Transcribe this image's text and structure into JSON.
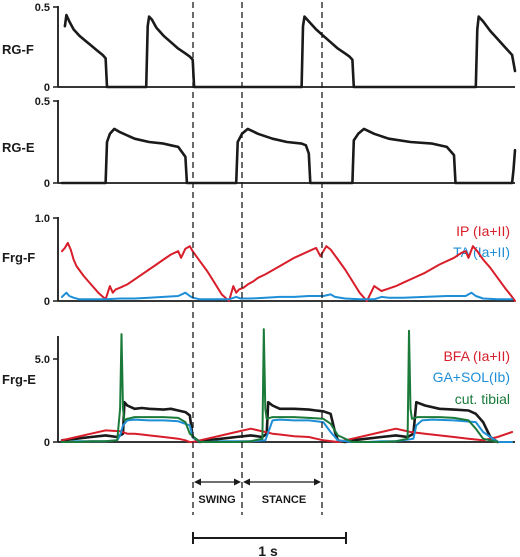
{
  "colors": {
    "black": "#1a1a1a",
    "red": "#d81e2a",
    "blue": "#1e8fd6",
    "green": "#1a7a3a"
  },
  "chart_data": [
    {
      "type": "line",
      "panel": "RG-F",
      "ylabel": "RG-F",
      "ylim": [
        0,
        0.5
      ],
      "yticks": [
        "0.5",
        "0"
      ],
      "series": [
        {
          "color": "black",
          "x": [
            0.02,
            0.03,
            0.05,
            0.08,
            0.12,
            0.16,
            0.2,
            0.24,
            0.28,
            0.3,
            0.31,
            0.5,
            0.58,
            0.59,
            0.6,
            0.62,
            0.65,
            0.7,
            0.75,
            0.8,
            0.85,
            0.88,
            0.9,
            0.91,
            1.5,
            1.65,
            1.66,
            1.67,
            1.7,
            1.75,
            1.8,
            1.85,
            1.9,
            1.95,
            1.98,
            2.0,
            2.01,
            2.6,
            2.85,
            2.86,
            2.87,
            2.9,
            2.95,
            3.0,
            3.05,
            3.1,
            3.12
          ],
          "y": [
            0.38,
            0.45,
            0.41,
            0.36,
            0.32,
            0.29,
            0.26,
            0.23,
            0.2,
            0.18,
            0.0,
            0.0,
            0.0,
            0.38,
            0.44,
            0.42,
            0.37,
            0.32,
            0.28,
            0.24,
            0.21,
            0.19,
            0.17,
            0.0,
            0.0,
            0.0,
            0.38,
            0.44,
            0.41,
            0.36,
            0.32,
            0.28,
            0.24,
            0.21,
            0.19,
            0.17,
            0.0,
            0.0,
            0.0,
            0.36,
            0.44,
            0.41,
            0.35,
            0.3,
            0.25,
            0.2,
            0.1
          ]
        }
      ]
    },
    {
      "type": "line",
      "panel": "RG-E",
      "ylabel": "RG-E",
      "ylim": [
        0,
        0.5
      ],
      "yticks": [
        "0.5",
        "0"
      ],
      "series": [
        {
          "color": "black",
          "x": [
            0.0,
            0.3,
            0.31,
            0.33,
            0.36,
            0.4,
            0.5,
            0.6,
            0.7,
            0.75,
            0.8,
            0.85,
            0.86,
            1.2,
            1.21,
            1.24,
            1.28,
            1.35,
            1.45,
            1.55,
            1.65,
            1.68,
            1.7,
            1.71,
            2.0,
            2.01,
            2.04,
            2.08,
            2.15,
            2.25,
            2.4,
            2.55,
            2.65,
            2.7,
            2.71,
            3.1,
            3.11,
            3.12
          ],
          "y": [
            0.0,
            0.0,
            0.25,
            0.3,
            0.33,
            0.31,
            0.27,
            0.25,
            0.24,
            0.23,
            0.22,
            0.16,
            0.0,
            0.0,
            0.25,
            0.3,
            0.33,
            0.3,
            0.27,
            0.25,
            0.24,
            0.23,
            0.18,
            0.0,
            0.0,
            0.26,
            0.3,
            0.33,
            0.3,
            0.27,
            0.25,
            0.24,
            0.22,
            0.17,
            0.0,
            0.0,
            0.08,
            0.2
          ]
        }
      ]
    },
    {
      "type": "line",
      "panel": "Frg-F",
      "ylabel": "Frg-F",
      "ylim": [
        0,
        1.0
      ],
      "yticks": [
        "1.0",
        "0"
      ],
      "series": [
        {
          "name": "IP (Ia+II)",
          "color": "red",
          "x": [
            0.0,
            0.02,
            0.04,
            0.06,
            0.08,
            0.1,
            0.15,
            0.2,
            0.25,
            0.3,
            0.33,
            0.35,
            0.37,
            0.4,
            0.45,
            0.5,
            0.55,
            0.6,
            0.65,
            0.7,
            0.75,
            0.8,
            0.82,
            0.85,
            0.88,
            0.9,
            0.95,
            1.0,
            1.05,
            1.1,
            1.15,
            1.18,
            1.2,
            1.22,
            1.25,
            1.28,
            1.32,
            1.35,
            1.4,
            1.5,
            1.6,
            1.7,
            1.75,
            1.78,
            1.82,
            1.85,
            1.9,
            1.95,
            2.0,
            2.05,
            2.1,
            2.15,
            2.2,
            2.25,
            2.3,
            2.35,
            2.4,
            2.5,
            2.6,
            2.7,
            2.75,
            2.78,
            2.8,
            2.83,
            2.86,
            2.9,
            2.95,
            3.0,
            3.05,
            3.1,
            3.12
          ],
          "y": [
            0.6,
            0.64,
            0.7,
            0.62,
            0.5,
            0.42,
            0.3,
            0.2,
            0.1,
            0.02,
            0.18,
            0.1,
            0.14,
            0.16,
            0.2,
            0.26,
            0.32,
            0.38,
            0.44,
            0.5,
            0.56,
            0.6,
            0.52,
            0.63,
            0.66,
            0.6,
            0.48,
            0.36,
            0.22,
            0.08,
            0.0,
            0.18,
            0.1,
            0.14,
            0.16,
            0.2,
            0.24,
            0.28,
            0.32,
            0.42,
            0.52,
            0.6,
            0.64,
            0.54,
            0.66,
            0.62,
            0.5,
            0.38,
            0.24,
            0.1,
            0.0,
            0.18,
            0.12,
            0.15,
            0.18,
            0.22,
            0.26,
            0.34,
            0.44,
            0.52,
            0.58,
            0.6,
            0.52,
            0.66,
            0.6,
            0.5,
            0.4,
            0.28,
            0.16,
            0.05,
            0.0
          ]
        },
        {
          "name": "TA (Ia+II)",
          "color": "blue",
          "x": [
            0.0,
            0.03,
            0.05,
            0.08,
            0.12,
            0.2,
            0.3,
            0.4,
            0.5,
            0.6,
            0.7,
            0.8,
            0.85,
            0.88,
            0.9,
            0.95,
            1.05,
            1.15,
            1.2,
            1.23,
            1.3,
            1.4,
            1.5,
            1.6,
            1.7,
            1.8,
            1.85,
            1.88,
            1.95,
            2.05,
            2.15,
            2.2,
            2.25,
            2.35,
            2.5,
            2.65,
            2.78,
            2.82,
            2.85,
            2.9,
            3.0,
            3.1
          ],
          "y": [
            0.05,
            0.1,
            0.06,
            0.04,
            0.02,
            0.02,
            0.02,
            0.03,
            0.03,
            0.04,
            0.05,
            0.06,
            0.1,
            0.06,
            0.04,
            0.02,
            0.02,
            0.02,
            0.05,
            0.03,
            0.03,
            0.04,
            0.05,
            0.05,
            0.06,
            0.06,
            0.08,
            0.05,
            0.03,
            0.02,
            0.02,
            0.05,
            0.04,
            0.04,
            0.05,
            0.06,
            0.06,
            0.1,
            0.06,
            0.03,
            0.02,
            0.02
          ]
        }
      ],
      "legend_placement": "top-right"
    },
    {
      "type": "line",
      "panel": "Frg-E",
      "ylabel": "Frg-E",
      "ylim": [
        0,
        5.0
      ],
      "yticks": [
        "5.0",
        "0"
      ],
      "series": [
        {
          "name": "BFA (Ia+II)",
          "color": "red",
          "x": [
            0.0,
            0.1,
            0.2,
            0.3,
            0.4,
            0.45,
            0.5,
            0.55,
            0.6,
            0.7,
            0.8,
            0.85,
            0.88,
            0.9,
            1.0,
            1.1,
            1.2,
            1.3,
            1.4,
            1.45,
            1.5,
            1.6,
            1.7,
            1.75,
            1.8,
            1.9,
            2.0,
            2.1,
            2.2,
            2.3,
            2.4,
            2.5,
            2.6,
            2.7,
            2.8,
            2.9,
            3.0,
            3.1
          ],
          "y": [
            0.1,
            0.3,
            0.5,
            0.7,
            0.65,
            0.5,
            0.5,
            0.45,
            0.4,
            0.3,
            0.2,
            0.1,
            0.0,
            0.0,
            0.2,
            0.4,
            0.6,
            0.8,
            0.6,
            0.5,
            0.45,
            0.35,
            0.3,
            0.2,
            0.1,
            0.0,
            0.2,
            0.4,
            0.6,
            0.8,
            0.6,
            0.5,
            0.4,
            0.3,
            0.2,
            0.1,
            0.3,
            0.6
          ]
        },
        {
          "name": "GA+SOL(Ib)",
          "color": "blue",
          "x": [
            0.0,
            0.05,
            0.1,
            0.2,
            0.3,
            0.38,
            0.4,
            0.42,
            0.45,
            0.5,
            0.6,
            0.7,
            0.8,
            0.88,
            0.9,
            0.95,
            1.0,
            1.1,
            1.2,
            1.3,
            1.4,
            1.43,
            1.45,
            1.5,
            1.6,
            1.7,
            1.8,
            1.85,
            1.9,
            2.0,
            2.1,
            2.2,
            2.3,
            2.42,
            2.44,
            2.48,
            2.55,
            2.7,
            2.85,
            2.9,
            3.0,
            3.1
          ],
          "y": [
            0.0,
            0.0,
            0.05,
            0.05,
            0.05,
            0.1,
            0.4,
            1.0,
            1.3,
            1.35,
            1.3,
            1.3,
            1.25,
            1.0,
            0.3,
            0.0,
            0.0,
            0.05,
            0.05,
            0.05,
            0.1,
            0.8,
            1.3,
            1.35,
            1.3,
            1.3,
            1.2,
            0.6,
            0.1,
            0.0,
            0.0,
            0.05,
            0.05,
            0.2,
            1.0,
            1.3,
            1.35,
            1.3,
            1.2,
            0.6,
            0.0,
            0.0
          ]
        },
        {
          "name": "cut. tibial",
          "color": "green",
          "x": [
            0.0,
            0.1,
            0.2,
            0.3,
            0.38,
            0.4,
            0.41,
            0.42,
            0.43,
            0.45,
            0.5,
            0.6,
            0.7,
            0.8,
            0.85,
            0.88,
            0.95,
            1.0,
            1.1,
            1.2,
            1.3,
            1.38,
            1.39,
            1.4,
            1.41,
            1.45,
            1.5,
            1.6,
            1.7,
            1.8,
            1.85,
            1.9,
            2.0,
            2.1,
            2.2,
            2.3,
            2.38,
            2.39,
            2.4,
            2.41,
            2.45,
            2.5,
            2.6,
            2.7,
            2.8,
            2.85,
            2.9,
            3.0
          ],
          "y": [
            0.0,
            0.0,
            0.05,
            0.05,
            0.1,
            2.0,
            6.5,
            2.0,
            1.3,
            1.4,
            1.5,
            1.5,
            1.5,
            1.45,
            1.2,
            0.5,
            0.0,
            0.0,
            0.0,
            0.0,
            0.05,
            0.2,
            6.8,
            2.0,
            1.4,
            1.5,
            1.5,
            1.5,
            1.45,
            1.4,
            1.1,
            0.4,
            0.0,
            0.0,
            0.0,
            0.05,
            0.2,
            6.7,
            2.0,
            1.4,
            1.5,
            1.5,
            1.5,
            1.45,
            1.3,
            0.8,
            0.2,
            0.0
          ]
        },
        {
          "color": "black",
          "x": [
            0.0,
            0.1,
            0.2,
            0.3,
            0.38,
            0.42,
            0.43,
            0.45,
            0.5,
            0.55,
            0.6,
            0.7,
            0.75,
            0.8,
            0.85,
            0.88,
            0.9,
            0.95,
            1.0,
            1.1,
            1.2,
            1.3,
            1.38,
            1.41,
            1.42,
            1.45,
            1.5,
            1.6,
            1.7,
            1.75,
            1.8,
            1.85,
            1.88,
            1.9,
            1.95,
            2.0,
            2.1,
            2.2,
            2.3,
            2.38,
            2.42,
            2.44,
            2.5,
            2.6,
            2.7,
            2.8,
            2.85,
            2.9,
            2.95,
            3.0
          ],
          "y": [
            0.1,
            0.2,
            0.3,
            0.4,
            0.3,
            0.5,
            2.4,
            2.2,
            2.0,
            2.05,
            2.0,
            1.95,
            2.0,
            1.9,
            1.8,
            1.6,
            0.3,
            0.0,
            0.1,
            0.2,
            0.3,
            0.4,
            0.3,
            0.5,
            2.4,
            2.2,
            2.0,
            2.0,
            1.95,
            1.9,
            1.85,
            1.7,
            0.6,
            0.1,
            0.0,
            0.1,
            0.2,
            0.3,
            0.4,
            0.3,
            0.5,
            2.4,
            2.2,
            2.0,
            1.95,
            1.9,
            1.7,
            1.2,
            0.3,
            0.0
          ]
        }
      ],
      "legend_placement": "top-right"
    }
  ],
  "phases": {
    "swing_label": "SWING",
    "stance_label": "STANCE",
    "scale_bar_label": "1 s"
  }
}
